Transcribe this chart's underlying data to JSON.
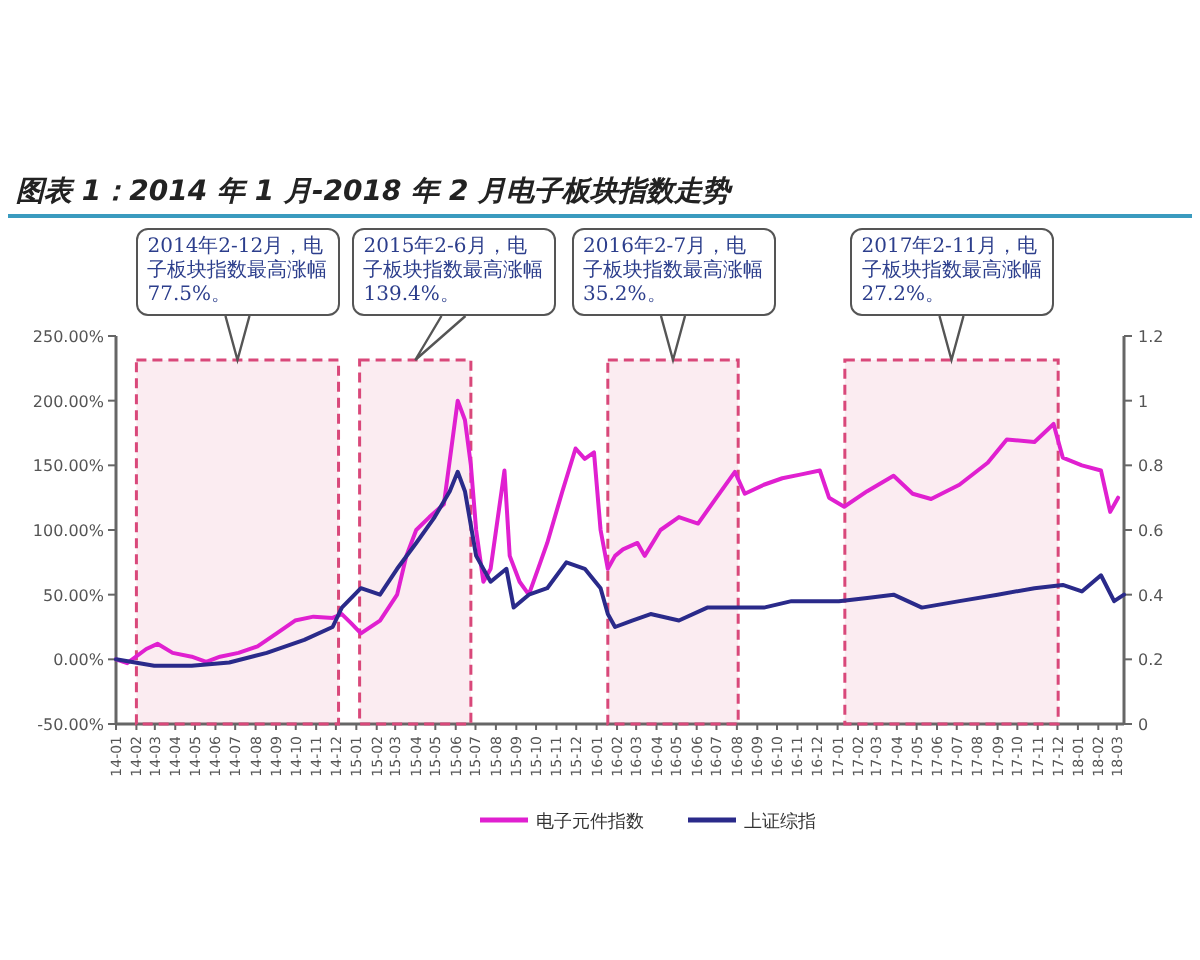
{
  "chart_data": {
    "type": "line",
    "title": "图表 1：2014 年 1 月-2018 年 2 月电子板块指数走势",
    "xlim": [
      "2014-01-01",
      "2018-03-12"
    ],
    "xticks": [
      {
        "value": "2014-01-01",
        "label": "14-01"
      },
      {
        "value": "2014-02-01",
        "label": "14-02"
      },
      {
        "value": "2014-03-01",
        "label": "14-03"
      },
      {
        "value": "2014-04-01",
        "label": "14-04"
      },
      {
        "value": "2014-05-01",
        "label": "14-05"
      },
      {
        "value": "2014-06-01",
        "label": "14-06"
      },
      {
        "value": "2014-07-01",
        "label": "14-07"
      },
      {
        "value": "2014-08-01",
        "label": "14-08"
      },
      {
        "value": "2014-09-01",
        "label": "14-09"
      },
      {
        "value": "2014-10-01",
        "label": "14-10"
      },
      {
        "value": "2014-11-01",
        "label": "14-11"
      },
      {
        "value": "2014-12-01",
        "label": "14-12"
      },
      {
        "value": "2015-01-01",
        "label": "15-01"
      },
      {
        "value": "2015-02-01",
        "label": "15-02"
      },
      {
        "value": "2015-03-01",
        "label": "15-03"
      },
      {
        "value": "2015-04-01",
        "label": "15-04"
      },
      {
        "value": "2015-05-01",
        "label": "15-05"
      },
      {
        "value": "2015-06-01",
        "label": "15-06"
      },
      {
        "value": "2015-07-01",
        "label": "15-07"
      },
      {
        "value": "2015-08-01",
        "label": "15-08"
      },
      {
        "value": "2015-09-01",
        "label": "15-09"
      },
      {
        "value": "2015-10-01",
        "label": "15-10"
      },
      {
        "value": "2015-11-01",
        "label": "15-11"
      },
      {
        "value": "2015-12-01",
        "label": "15-12"
      },
      {
        "value": "2016-01-01",
        "label": "16-01"
      },
      {
        "value": "2016-02-01",
        "label": "16-02"
      },
      {
        "value": "2016-03-01",
        "label": "16-03"
      },
      {
        "value": "2016-04-01",
        "label": "16-04"
      },
      {
        "value": "2016-05-01",
        "label": "16-05"
      },
      {
        "value": "2016-06-01",
        "label": "16-06"
      },
      {
        "value": "2016-07-01",
        "label": "16-07"
      },
      {
        "value": "2016-08-01",
        "label": "16-08"
      },
      {
        "value": "2016-09-01",
        "label": "16-09"
      },
      {
        "value": "2016-10-01",
        "label": "16-10"
      },
      {
        "value": "2016-11-01",
        "label": "16-11"
      },
      {
        "value": "2016-12-01",
        "label": "16-12"
      },
      {
        "value": "2017-01-01",
        "label": "17-01"
      },
      {
        "value": "2017-02-01",
        "label": "17-02"
      },
      {
        "value": "2017-03-01",
        "label": "17-03"
      },
      {
        "value": "2017-04-01",
        "label": "17-04"
      },
      {
        "value": "2017-05-01",
        "label": "17-05"
      },
      {
        "value": "2017-06-01",
        "label": "17-06"
      },
      {
        "value": "2017-07-01",
        "label": "17-07"
      },
      {
        "value": "2017-08-01",
        "label": "17-08"
      },
      {
        "value": "2017-09-01",
        "label": "17-09"
      },
      {
        "value": "2017-10-01",
        "label": "17-10"
      },
      {
        "value": "2017-11-01",
        "label": "17-11"
      },
      {
        "value": "2017-12-01",
        "label": "17-12"
      },
      {
        "value": "2018-01-01",
        "label": "18-01"
      },
      {
        "value": "2018-02-01",
        "label": "18-02"
      },
      {
        "value": "2018-03-01",
        "label": "18-03"
      }
    ],
    "ylim": [
      -50,
      250
    ],
    "yticks": [
      {
        "value": -50,
        "label": "-50.00%"
      },
      {
        "value": 0,
        "label": "0.00%"
      },
      {
        "value": 50,
        "label": "50.00%"
      },
      {
        "value": 100,
        "label": "100.00%"
      },
      {
        "value": 150,
        "label": "150.00%"
      },
      {
        "value": 200,
        "label": "200.00%"
      },
      {
        "value": 250,
        "label": "250.00%"
      }
    ],
    "y2lim": [
      0,
      1.2
    ],
    "y2ticks": [
      0,
      0.2,
      0.4,
      0.6,
      0.8,
      1,
      1.2
    ],
    "legend": "bottom",
    "grid": false,
    "line_style": "solid",
    "marker": "none",
    "series": [
      {
        "name": "电子元件指数",
        "color": "#e020d0",
        "x": [
          "2014-01-01",
          "2014-01-18",
          "2014-02-16",
          "2014-03-05",
          "2014-03-28",
          "2014-04-26",
          "2014-05-18",
          "2014-06-08",
          "2014-07-06",
          "2014-08-04",
          "2014-09-02",
          "2014-09-30",
          "2014-10-28",
          "2014-11-26",
          "2014-12-10",
          "2014-12-24",
          "2015-01-08",
          "2015-02-06",
          "2015-03-04",
          "2015-03-18",
          "2015-04-02",
          "2015-04-22",
          "2015-05-14",
          "2015-06-04",
          "2015-06-15",
          "2015-06-24",
          "2015-07-02",
          "2015-07-13",
          "2015-07-24",
          "2015-08-14",
          "2015-08-22",
          "2015-09-06",
          "2015-09-20",
          "2015-10-04",
          "2015-10-18",
          "2015-11-10",
          "2015-11-30",
          "2015-12-14",
          "2015-12-28",
          "2016-01-07",
          "2016-01-18",
          "2016-01-29",
          "2016-02-10",
          "2016-03-03",
          "2016-03-14",
          "2016-04-07",
          "2016-05-05",
          "2016-06-03",
          "2016-07-01",
          "2016-07-29",
          "2016-08-13",
          "2016-09-11",
          "2016-10-09",
          "2016-11-07",
          "2016-12-05",
          "2016-12-19",
          "2017-01-11",
          "2017-02-15",
          "2017-03-27",
          "2017-04-25",
          "2017-05-23",
          "2017-07-05",
          "2017-08-17",
          "2017-09-15",
          "2017-10-27",
          "2017-11-25",
          "2017-12-09",
          "2018-01-07",
          "2018-02-05",
          "2018-02-19",
          "2018-03-03"
        ],
        "values": [
          0,
          -3,
          8,
          12,
          5,
          2,
          -2,
          2,
          5,
          10,
          20,
          30,
          33,
          32,
          35,
          28,
          20,
          30,
          50,
          80,
          100,
          110,
          120,
          200,
          185,
          150,
          100,
          60,
          70,
          146,
          80,
          60,
          50,
          70,
          90,
          130,
          163,
          155,
          160,
          100,
          70,
          80,
          85,
          90,
          80,
          100,
          110,
          105,
          125,
          145,
          128,
          135,
          140,
          143,
          146,
          125,
          118,
          130,
          142,
          128,
          124,
          135,
          152,
          170,
          168,
          182,
          156,
          150,
          146,
          114,
          125
        ]
      },
      {
        "name": "上证综指",
        "color": "#2a2a8a",
        "axis": "y2",
        "x": [
          "2014-01-01",
          "2014-02-28",
          "2014-04-26",
          "2014-06-22",
          "2014-08-18",
          "2014-10-14",
          "2014-11-26",
          "2014-12-10",
          "2015-01-08",
          "2015-02-06",
          "2015-03-04",
          "2015-04-02",
          "2015-04-30",
          "2015-05-23",
          "2015-06-04",
          "2015-06-15",
          "2015-07-02",
          "2015-07-24",
          "2015-08-17",
          "2015-08-28",
          "2015-09-20",
          "2015-10-18",
          "2015-11-16",
          "2015-12-14",
          "2016-01-07",
          "2016-01-18",
          "2016-01-29",
          "2016-02-24",
          "2016-03-23",
          "2016-05-05",
          "2016-06-17",
          "2016-07-29",
          "2016-09-11",
          "2016-10-23",
          "2016-12-05",
          "2017-01-03",
          "2017-02-15",
          "2017-03-27",
          "2017-05-09",
          "2017-07-05",
          "2017-09-01",
          "2017-10-27",
          "2017-12-09",
          "2018-01-07",
          "2018-02-05",
          "2018-02-25",
          "2018-03-12"
        ],
        "values": [
          0.2,
          0.18,
          0.18,
          0.19,
          0.22,
          0.26,
          0.3,
          0.36,
          0.42,
          0.4,
          0.48,
          0.56,
          0.64,
          0.72,
          0.78,
          0.72,
          0.52,
          0.44,
          0.48,
          0.36,
          0.4,
          0.42,
          0.5,
          0.48,
          0.42,
          0.34,
          0.3,
          0.32,
          0.34,
          0.32,
          0.36,
          0.36,
          0.36,
          0.38,
          0.38,
          0.38,
          0.39,
          0.4,
          0.36,
          0.38,
          0.4,
          0.42,
          0.43,
          0.41,
          0.46,
          0.38,
          0.4
        ]
      }
    ],
    "bands": [
      {
        "axis": "x",
        "from": "2014-02-01",
        "to": "2014-12-05",
        "label": "2014年2-12月，电子板块指数最高涨幅77.5%。",
        "color": "#d9487a"
      },
      {
        "axis": "x",
        "from": "2015-01-06",
        "to": "2015-06-24",
        "label": "2015年2-6月，电子板块指数最高涨幅139.4%。",
        "color": "#d9487a"
      },
      {
        "axis": "x",
        "from": "2016-01-18",
        "to": "2016-08-03",
        "label": "2016年2-7月，电子板块指数最高涨幅35.2%。",
        "color": "#d9487a"
      },
      {
        "axis": "x",
        "from": "2017-01-12",
        "to": "2017-12-02",
        "label": "2017年2-11月，电子板块指数最高涨幅27.2%。",
        "color": "#d9487a"
      }
    ]
  }
}
